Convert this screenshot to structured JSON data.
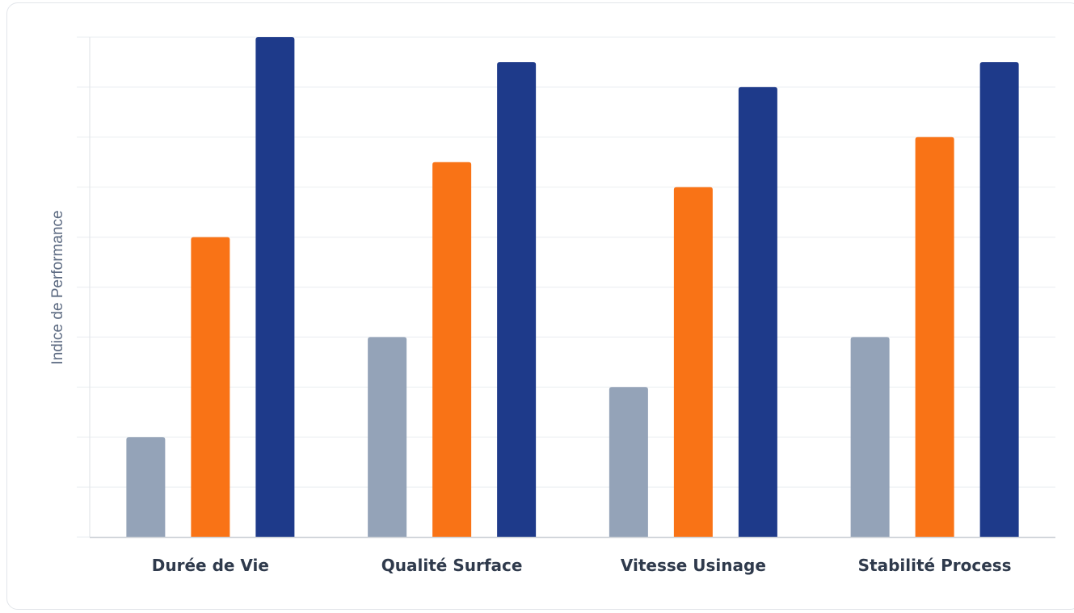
{
  "chart_data": {
    "type": "bar",
    "title": "",
    "xlabel": "",
    "ylabel": "Indice de Performance",
    "categories": [
      "Durée de Vie",
      "Qualité Surface",
      "Vitesse Usinage",
      "Stabilité Process"
    ],
    "series": [
      {
        "values": [
          2,
          4,
          3,
          4
        ],
        "color": "#94a3b8"
      },
      {
        "values": [
          6,
          7.5,
          7,
          8
        ],
        "color": "#f97316"
      },
      {
        "values": [
          10,
          9.5,
          9,
          9.5
        ],
        "color": "#1e3a8a"
      }
    ],
    "ylim": [
      0,
      10
    ],
    "y_ticks_shown": false,
    "grid": true,
    "legend": "none"
  }
}
